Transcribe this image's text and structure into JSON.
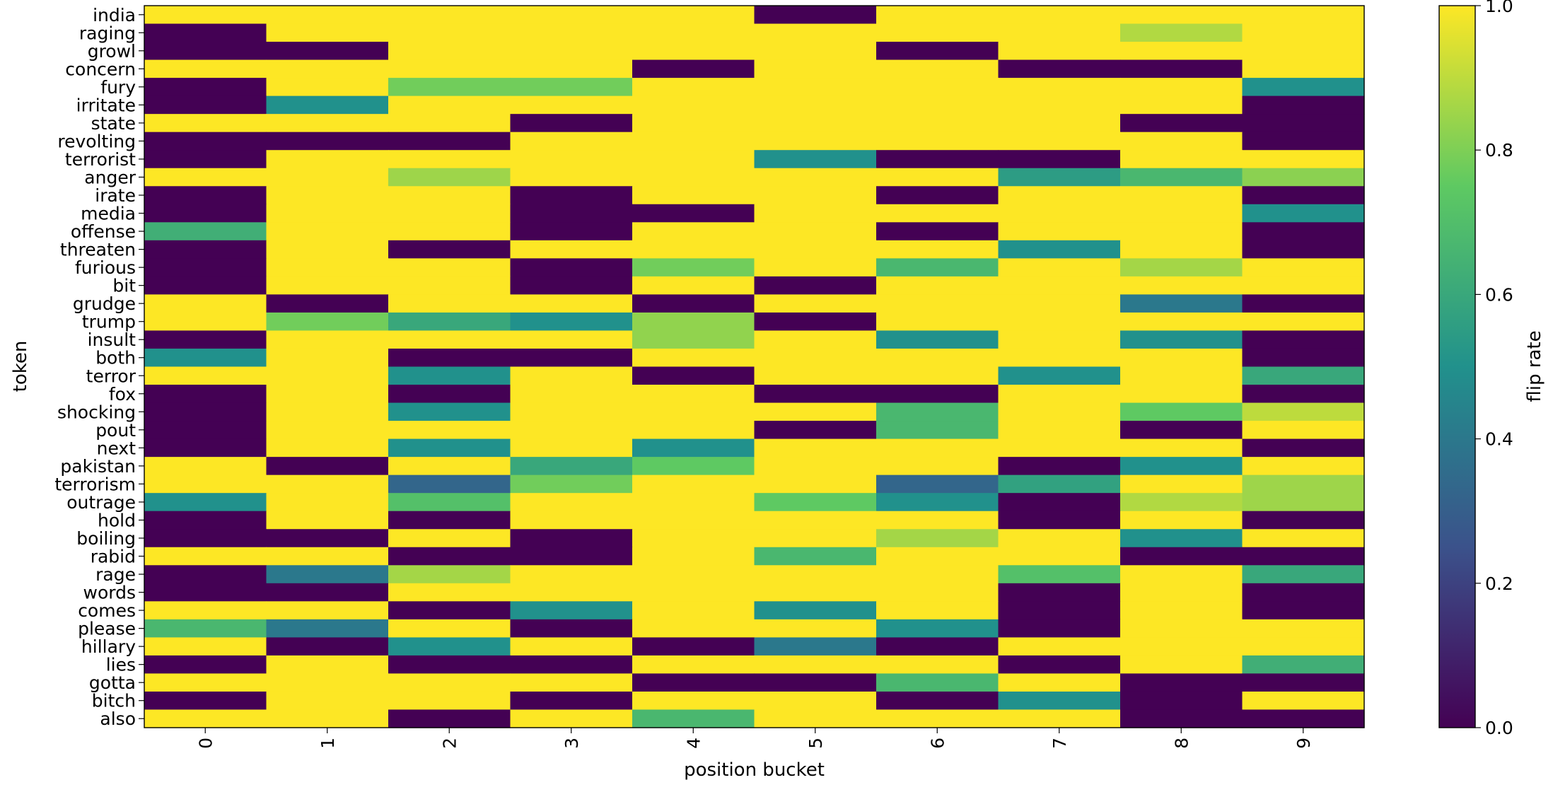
{
  "chart_data": {
    "type": "heatmap",
    "xlabel": "position bucket",
    "ylabel": "token",
    "x_categories": [
      "0",
      "1",
      "2",
      "3",
      "4",
      "5",
      "6",
      "7",
      "8",
      "9"
    ],
    "y_categories": [
      "india",
      "raging",
      "growl",
      "concern",
      "fury",
      "irritate",
      "state",
      "revolting",
      "terrorist",
      "anger",
      "irate",
      "media",
      "offense",
      "threaten",
      "furious",
      "bit",
      "grudge",
      "trump",
      "insult",
      "both",
      "terror",
      "fox",
      "shocking",
      "pout",
      "next",
      "pakistan",
      "terrorism",
      "outrage",
      "hold",
      "boiling",
      "rabid",
      "rage",
      "words",
      "comes",
      "please",
      "hillary",
      "lies",
      "gotta",
      "bitch",
      "also"
    ],
    "values": [
      [
        1,
        1,
        1,
        1,
        1,
        0,
        1,
        1,
        1,
        1
      ],
      [
        0,
        1,
        1,
        1,
        1,
        1,
        1,
        1,
        0.88,
        1
      ],
      [
        0,
        0,
        1,
        1,
        1,
        1,
        0,
        1,
        1,
        1
      ],
      [
        1,
        1,
        1,
        1,
        0,
        1,
        1,
        0,
        0,
        1
      ],
      [
        0,
        1,
        0.78,
        0.78,
        1,
        1,
        1,
        1,
        1,
        0.5
      ],
      [
        0,
        0.5,
        1,
        1,
        1,
        1,
        1,
        1,
        1,
        0
      ],
      [
        1,
        1,
        1,
        0,
        1,
        1,
        1,
        1,
        0,
        0
      ],
      [
        0,
        0,
        0,
        1,
        1,
        1,
        1,
        1,
        1,
        0
      ],
      [
        0,
        1,
        1,
        1,
        1,
        0.5,
        0,
        0,
        1,
        1
      ],
      [
        1,
        1,
        0.85,
        1,
        1,
        1,
        1,
        0.55,
        0.67,
        0.82
      ],
      [
        0,
        1,
        1,
        0,
        1,
        1,
        0,
        1,
        1,
        0
      ],
      [
        0,
        1,
        1,
        0,
        0,
        1,
        1,
        1,
        1,
        0.5
      ],
      [
        0.63,
        1,
        1,
        0,
        1,
        1,
        0,
        1,
        1,
        0
      ],
      [
        0,
        1,
        0,
        1,
        1,
        1,
        1,
        0.5,
        1,
        0
      ],
      [
        0,
        1,
        1,
        0,
        0.78,
        1,
        0.67,
        1,
        0.86,
        1
      ],
      [
        0,
        1,
        1,
        0,
        1,
        0,
        1,
        1,
        1,
        1
      ],
      [
        1,
        0,
        1,
        1,
        0,
        1,
        1,
        1,
        0.4,
        0
      ],
      [
        1,
        0.78,
        0.6,
        0.5,
        0.83,
        0,
        1,
        1,
        1,
        1
      ],
      [
        0,
        1,
        1,
        1,
        0.83,
        1,
        0.5,
        1,
        0.5,
        0
      ],
      [
        0.5,
        1,
        0,
        0,
        1,
        1,
        1,
        1,
        1,
        0
      ],
      [
        1,
        1,
        0.5,
        1,
        0,
        1,
        1,
        0.5,
        1,
        0.6
      ],
      [
        0,
        1,
        0,
        1,
        1,
        0,
        0,
        1,
        1,
        0
      ],
      [
        0,
        1,
        0.5,
        1,
        1,
        1,
        0.67,
        1,
        0.75,
        0.9
      ],
      [
        0,
        1,
        1,
        1,
        1,
        0,
        0.67,
        1,
        0,
        1
      ],
      [
        0,
        1,
        0.5,
        1,
        0.5,
        1,
        1,
        1,
        1,
        0
      ],
      [
        1,
        0,
        1,
        0.6,
        0.75,
        1,
        1,
        0,
        0.5,
        1
      ],
      [
        1,
        1,
        0.33,
        0.78,
        1,
        1,
        0.33,
        0.57,
        1,
        0.85
      ],
      [
        0.5,
        1,
        0.71,
        1,
        1,
        0.75,
        0.5,
        0,
        0.88,
        0.85
      ],
      [
        0,
        1,
        0,
        1,
        1,
        1,
        1,
        0,
        1,
        0
      ],
      [
        0,
        0,
        1,
        0,
        1,
        1,
        0.86,
        1,
        0.5,
        1
      ],
      [
        1,
        1,
        0,
        0,
        1,
        0.67,
        1,
        1,
        0,
        0
      ],
      [
        0,
        0.4,
        0.86,
        1,
        1,
        1,
        1,
        0.71,
        1,
        0.6
      ],
      [
        0,
        0,
        1,
        1,
        1,
        1,
        1,
        0,
        1,
        0
      ],
      [
        1,
        1,
        0,
        0.5,
        1,
        0.5,
        1,
        0,
        1,
        0
      ],
      [
        0.67,
        0.4,
        1,
        0,
        1,
        1,
        0.5,
        0,
        1,
        1
      ],
      [
        1,
        0,
        0.5,
        1,
        0,
        0.4,
        0,
        1,
        1,
        1
      ],
      [
        0,
        1,
        0,
        0,
        1,
        1,
        1,
        0,
        1,
        0.63
      ],
      [
        1,
        1,
        1,
        1,
        0,
        0,
        0.67,
        1,
        0,
        0
      ],
      [
        0,
        1,
        1,
        0,
        1,
        1,
        0,
        0.5,
        0,
        1
      ],
      [
        1,
        1,
        0,
        1,
        0.67,
        1,
        1,
        1,
        0,
        0
      ]
    ],
    "colorbar": {
      "label": "flip rate",
      "range": [
        0.0,
        1.0
      ],
      "ticks": [
        "0.0",
        "0.2",
        "0.4",
        "0.6",
        "0.8",
        "1.0"
      ],
      "colormap": "viridis"
    }
  },
  "colors": {
    "viridis_stops": [
      "#440154",
      "#3b528b",
      "#21918c",
      "#5ec962",
      "#fde725"
    ]
  }
}
